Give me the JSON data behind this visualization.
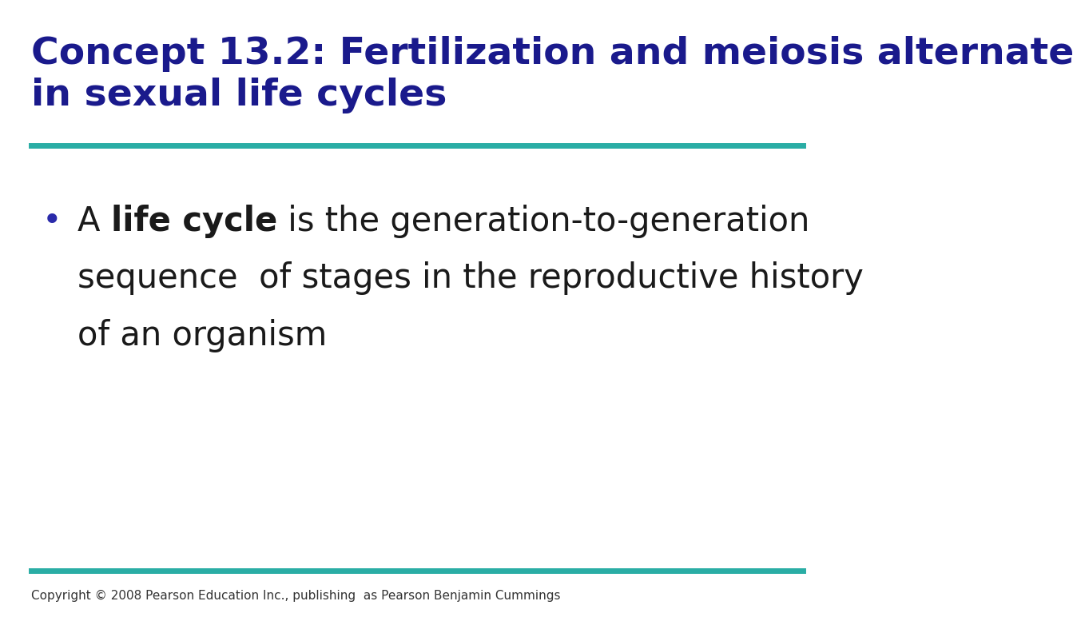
{
  "title_line1": "Concept 13.2: Fertilization and meiosis alternate",
  "title_line2": "in sexual life cycles",
  "title_color": "#1a1a8c",
  "title_fontsize": 34,
  "teal_color": "#2aada5",
  "teal_line_thickness": 5,
  "bullet_fontsize": 30,
  "bullet_color": "#1a1a1a",
  "bullet_dot_color": "#2a2aaa",
  "copyright_text": "Copyright © 2008 Pearson Education Inc., publishing  as Pearson Benjamin Cummings",
  "copyright_fontsize": 11,
  "copyright_color": "#333333",
  "background_color": "#ffffff"
}
